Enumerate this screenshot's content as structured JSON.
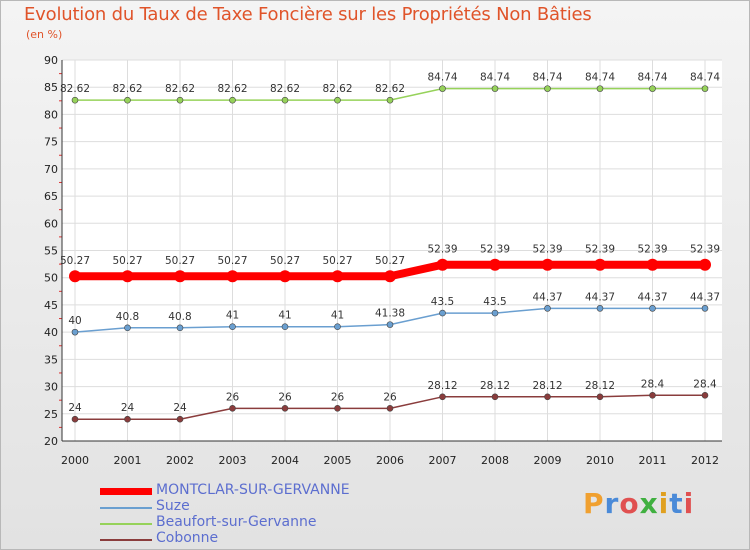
{
  "page": {
    "title": "Evolution du Taux de Taxe Foncière sur les Propriétés Non Bâties",
    "unit": "(en %)"
  },
  "logo": {
    "text": "Proxiti",
    "colors": [
      "#f0a030",
      "#4a8ad8",
      "#e05050",
      "#40b040",
      "#e0a020",
      "#4a8ad8",
      "#e05050"
    ]
  },
  "chart_data": {
    "type": "line",
    "title": "Evolution du Taux de Taxe Foncière sur les Propriétés Non Bâties",
    "ylabel": "(en %)",
    "xlabel": "",
    "ylim": [
      20,
      90
    ],
    "yticks": [
      20,
      25,
      30,
      35,
      40,
      45,
      50,
      55,
      60,
      65,
      70,
      75,
      80,
      85,
      90
    ],
    "categories": [
      "2000",
      "2001",
      "2002",
      "2003",
      "2004",
      "2005",
      "2006",
      "2007",
      "2008",
      "2009",
      "2010",
      "2011",
      "2012"
    ],
    "grid": true,
    "series": [
      {
        "name": "MONTCLAR-SUR-GERVANNE",
        "color": "#ff0000",
        "width": 8,
        "values": [
          50.27,
          50.27,
          50.27,
          50.27,
          50.27,
          50.27,
          50.27,
          52.39,
          52.39,
          52.39,
          52.39,
          52.39,
          52.39
        ],
        "labels": [
          "50.27",
          "50.27",
          "50.27",
          "50.27",
          "50.27",
          "50.27",
          "50.27",
          "52.39",
          "52.39",
          "52.39",
          "52.39",
          "52.39",
          "52.39"
        ]
      },
      {
        "name": "Suze",
        "color": "#6a9fd0",
        "width": 1.5,
        "values": [
          40,
          40.8,
          40.8,
          41,
          41,
          41,
          41.38,
          43.5,
          43.5,
          44.37,
          44.37,
          44.37,
          44.37
        ],
        "labels": [
          "40",
          "40.8",
          "40.8",
          "41",
          "41",
          "41",
          "41.38",
          "43.5",
          "43.5",
          "44.37",
          "44.37",
          "44.37",
          "44.37"
        ]
      },
      {
        "name": "Beaufort-sur-Gervanne",
        "color": "#96d25a",
        "width": 1.5,
        "values": [
          82.62,
          82.62,
          82.62,
          82.62,
          82.62,
          82.62,
          82.62,
          84.74,
          84.74,
          84.74,
          84.74,
          84.74,
          84.74
        ],
        "labels": [
          "82.62",
          "82.62",
          "82.62",
          "82.62",
          "82.62",
          "82.62",
          "82.62",
          "84.74",
          "84.74",
          "84.74",
          "84.74",
          "84.74",
          "84.74"
        ]
      },
      {
        "name": "Cobonne",
        "color": "#8a3c3c",
        "width": 1.5,
        "values": [
          24,
          24,
          24,
          26,
          26,
          26,
          26,
          28.12,
          28.12,
          28.12,
          28.12,
          28.4,
          28.4
        ],
        "labels": [
          "24",
          "24",
          "24",
          "26",
          "26",
          "26",
          "26",
          "28.12",
          "28.12",
          "28.12",
          "28.12",
          "28.4",
          "28.4"
        ]
      }
    ]
  }
}
